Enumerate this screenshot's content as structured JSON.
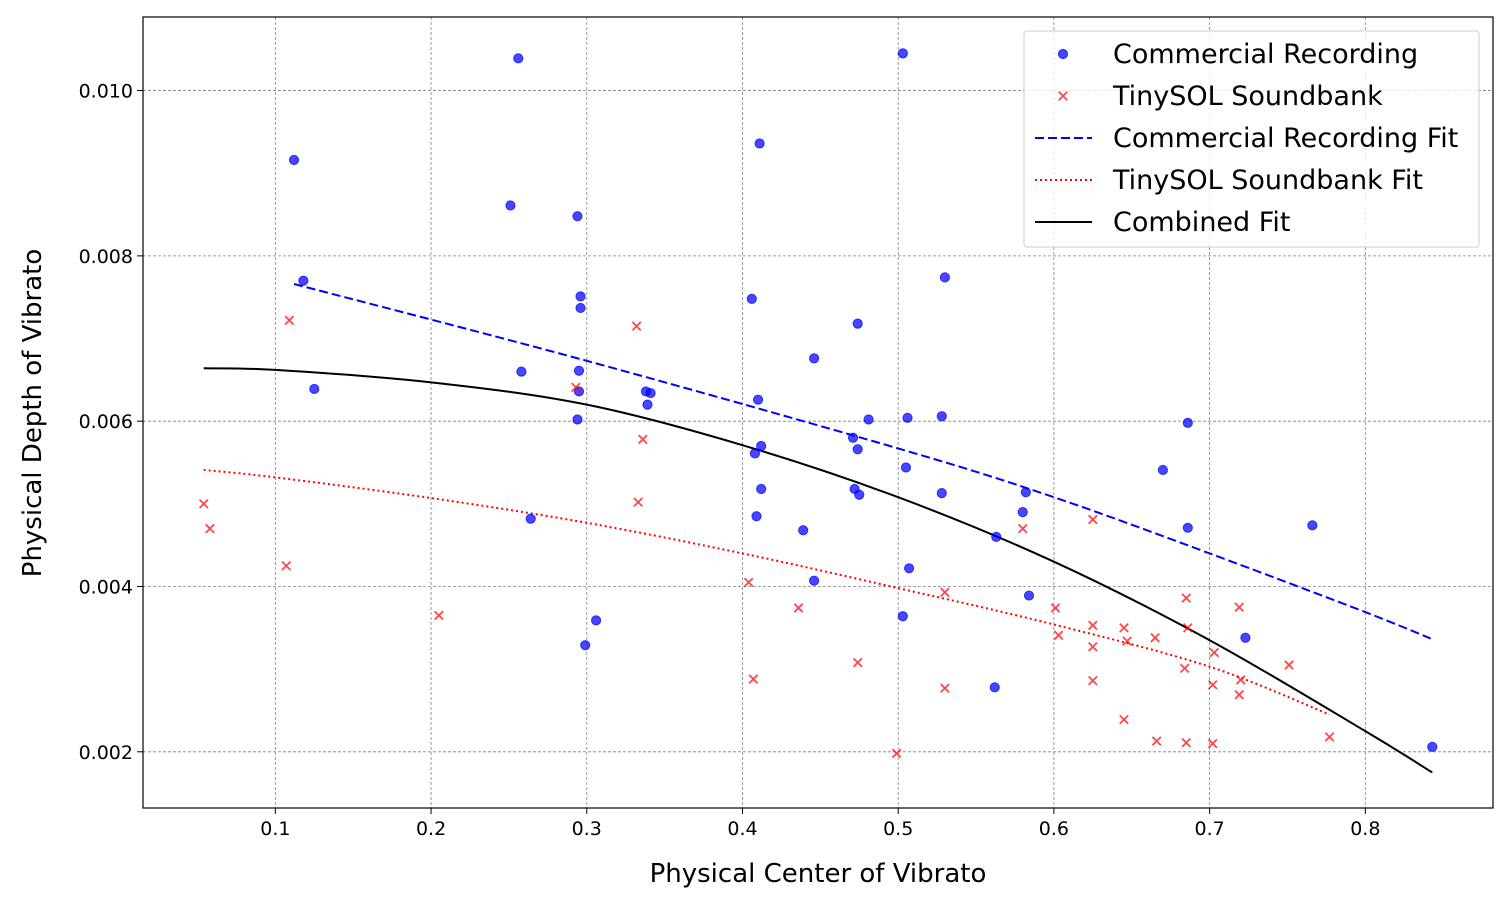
{
  "chart_data": {
    "type": "scatter",
    "xlabel": "Physical Center of Vibrato",
    "ylabel": "Physical Depth of Vibrato",
    "xlim": [
      0.015,
      0.882
    ],
    "ylim": [
      0.00132,
      0.01089
    ],
    "x_ticks": [
      0.1,
      0.2,
      0.3,
      0.4,
      0.5,
      0.6,
      0.7,
      0.8
    ],
    "x_tick_labels": [
      "0.1",
      "0.2",
      "0.3",
      "0.4",
      "0.5",
      "0.6",
      "0.7",
      "0.8"
    ],
    "y_ticks": [
      0.002,
      0.004,
      0.006,
      0.008,
      0.01
    ],
    "y_tick_labels": [
      "0.002",
      "0.004",
      "0.006",
      "0.008",
      "0.010"
    ],
    "grid": true,
    "legend_position": "top-right",
    "series": [
      {
        "name": "Commercial Recording",
        "kind": "scatter",
        "marker": "circle",
        "color": "#0000ff",
        "points": [
          [
            0.256,
            0.01039
          ],
          [
            0.503,
            0.01045
          ],
          [
            0.112,
            0.00916
          ],
          [
            0.411,
            0.00936
          ],
          [
            0.251,
            0.00861
          ],
          [
            0.294,
            0.00848
          ],
          [
            0.118,
            0.0077
          ],
          [
            0.296,
            0.00751
          ],
          [
            0.406,
            0.00748
          ],
          [
            0.296,
            0.00737
          ],
          [
            0.53,
            0.00774
          ],
          [
            0.474,
            0.00718
          ],
          [
            0.446,
            0.00676
          ],
          [
            0.258,
            0.0066
          ],
          [
            0.295,
            0.00661
          ],
          [
            0.125,
            0.00639
          ],
          [
            0.295,
            0.00636
          ],
          [
            0.338,
            0.00636
          ],
          [
            0.341,
            0.00634
          ],
          [
            0.339,
            0.0062
          ],
          [
            0.41,
            0.00626
          ],
          [
            0.481,
            0.00602
          ],
          [
            0.506,
            0.00604
          ],
          [
            0.528,
            0.00606
          ],
          [
            0.294,
            0.00602
          ],
          [
            0.686,
            0.00598
          ],
          [
            0.471,
            0.0058
          ],
          [
            0.412,
            0.0057
          ],
          [
            0.474,
            0.00566
          ],
          [
            0.408,
            0.00561
          ],
          [
            0.505,
            0.00544
          ],
          [
            0.67,
            0.00541
          ],
          [
            0.412,
            0.00518
          ],
          [
            0.472,
            0.00518
          ],
          [
            0.475,
            0.00511
          ],
          [
            0.528,
            0.00513
          ],
          [
            0.582,
            0.00514
          ],
          [
            0.264,
            0.00482
          ],
          [
            0.409,
            0.00485
          ],
          [
            0.58,
            0.0049
          ],
          [
            0.439,
            0.00468
          ],
          [
            0.686,
            0.00471
          ],
          [
            0.766,
            0.00474
          ],
          [
            0.563,
            0.0046
          ],
          [
            0.507,
            0.00422
          ],
          [
            0.446,
            0.00407
          ],
          [
            0.584,
            0.00389
          ],
          [
            0.306,
            0.00359
          ],
          [
            0.503,
            0.00364
          ],
          [
            0.299,
            0.00329
          ],
          [
            0.723,
            0.00338
          ],
          [
            0.562,
            0.00278
          ],
          [
            0.843,
            0.00206
          ]
        ]
      },
      {
        "name": "TinySOL Soundbank",
        "kind": "scatter",
        "marker": "x",
        "color": "#ff0000",
        "points": [
          [
            0.109,
            0.00722
          ],
          [
            0.332,
            0.00715
          ],
          [
            0.293,
            0.00641
          ],
          [
            0.336,
            0.00578
          ],
          [
            0.054,
            0.005
          ],
          [
            0.333,
            0.00502
          ],
          [
            0.058,
            0.0047
          ],
          [
            0.625,
            0.00481
          ],
          [
            0.58,
            0.0047
          ],
          [
            0.107,
            0.00425
          ],
          [
            0.404,
            0.00405
          ],
          [
            0.205,
            0.00365
          ],
          [
            0.53,
            0.00393
          ],
          [
            0.685,
            0.00386
          ],
          [
            0.719,
            0.00375
          ],
          [
            0.436,
            0.00374
          ],
          [
            0.601,
            0.00374
          ],
          [
            0.625,
            0.00353
          ],
          [
            0.645,
            0.0035
          ],
          [
            0.686,
            0.0035
          ],
          [
            0.603,
            0.00341
          ],
          [
            0.665,
            0.00338
          ],
          [
            0.647,
            0.00334
          ],
          [
            0.625,
            0.00327
          ],
          [
            0.703,
            0.0032
          ],
          [
            0.474,
            0.00308
          ],
          [
            0.751,
            0.00305
          ],
          [
            0.684,
            0.00301
          ],
          [
            0.407,
            0.00288
          ],
          [
            0.625,
            0.00286
          ],
          [
            0.72,
            0.00287
          ],
          [
            0.702,
            0.00281
          ],
          [
            0.53,
            0.00277
          ],
          [
            0.719,
            0.00269
          ],
          [
            0.645,
            0.00239
          ],
          [
            0.777,
            0.00218
          ],
          [
            0.666,
            0.00213
          ],
          [
            0.685,
            0.00211
          ],
          [
            0.702,
            0.0021
          ],
          [
            0.499,
            0.00198
          ]
        ]
      },
      {
        "name": "Commercial Recording Fit",
        "kind": "line",
        "style": "dashed",
        "color": "#0000ff",
        "points": [
          [
            0.112,
            0.00766
          ],
          [
            0.3,
            0.00673
          ],
          [
            0.5,
            0.00567
          ],
          [
            0.6,
            0.00508
          ],
          [
            0.7,
            0.0044
          ],
          [
            0.8,
            0.00369
          ],
          [
            0.842,
            0.00337
          ]
        ]
      },
      {
        "name": "TinySOL Soundbank Fit",
        "kind": "line",
        "style": "dotted",
        "color": "#ff0000",
        "points": [
          [
            0.054,
            0.00541
          ],
          [
            0.1,
            0.00532
          ],
          [
            0.2,
            0.00507
          ],
          [
            0.3,
            0.00477
          ],
          [
            0.4,
            0.0044
          ],
          [
            0.5,
            0.00398
          ],
          [
            0.6,
            0.00354
          ],
          [
            0.7,
            0.00303
          ],
          [
            0.777,
            0.00245
          ]
        ]
      },
      {
        "name": "Combined Fit",
        "kind": "line",
        "style": "solid",
        "color": "#000000",
        "points": [
          [
            0.054,
            0.00664
          ],
          [
            0.1,
            0.00662
          ],
          [
            0.2,
            0.00647
          ],
          [
            0.3,
            0.0062
          ],
          [
            0.4,
            0.00571
          ],
          [
            0.5,
            0.00508
          ],
          [
            0.6,
            0.0043
          ],
          [
            0.7,
            0.00335
          ],
          [
            0.8,
            0.00225
          ],
          [
            0.843,
            0.00175
          ]
        ]
      }
    ]
  }
}
